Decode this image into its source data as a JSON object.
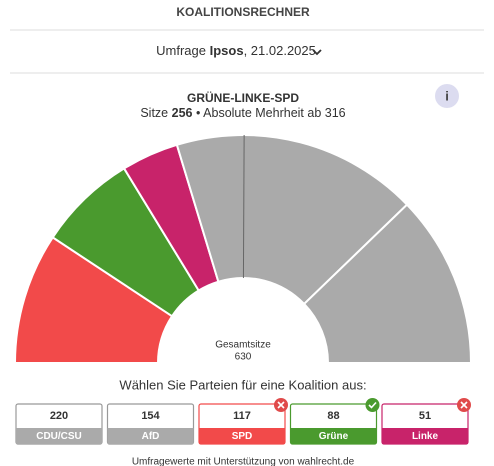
{
  "header": {
    "title": "KOALITIONSRECHNER"
  },
  "poll": {
    "prefix": "Umfrage",
    "institute": "Ipsos",
    "date": ", 21.02.2025"
  },
  "info": "i",
  "coalition": {
    "name": "GRÜNE-LINKE-SPD",
    "seats_label": "Sitze",
    "seats": 256,
    "separator": "•",
    "majority_label": "Absolute Mehrheit ab",
    "majority": 316
  },
  "chart": {
    "type": "half-donut",
    "total_label": "Gesamtsitze",
    "total": 630,
    "unselected_color": "#aaaaaa"
  },
  "prompt": "Wählen Sie Parteien für eine Koalition aus:",
  "parties": [
    {
      "name": "CDU/CSU",
      "seats": 220,
      "color": "#aaaaaa",
      "selected": false
    },
    {
      "name": "AfD",
      "seats": 154,
      "color": "#aaaaaa",
      "selected": false
    },
    {
      "name": "SPD",
      "seats": 117,
      "color": "#f24a4a",
      "selected": true,
      "icon": "remove"
    },
    {
      "name": "Grüne",
      "seats": 88,
      "color": "#4a9a2e",
      "selected": true,
      "icon": "check"
    },
    {
      "name": "Linke",
      "seats": 51,
      "color": "#c8236a",
      "selected": true,
      "icon": "remove"
    }
  ],
  "footer": "Umfragewerte mit Unterstützung von wahlrecht.de"
}
